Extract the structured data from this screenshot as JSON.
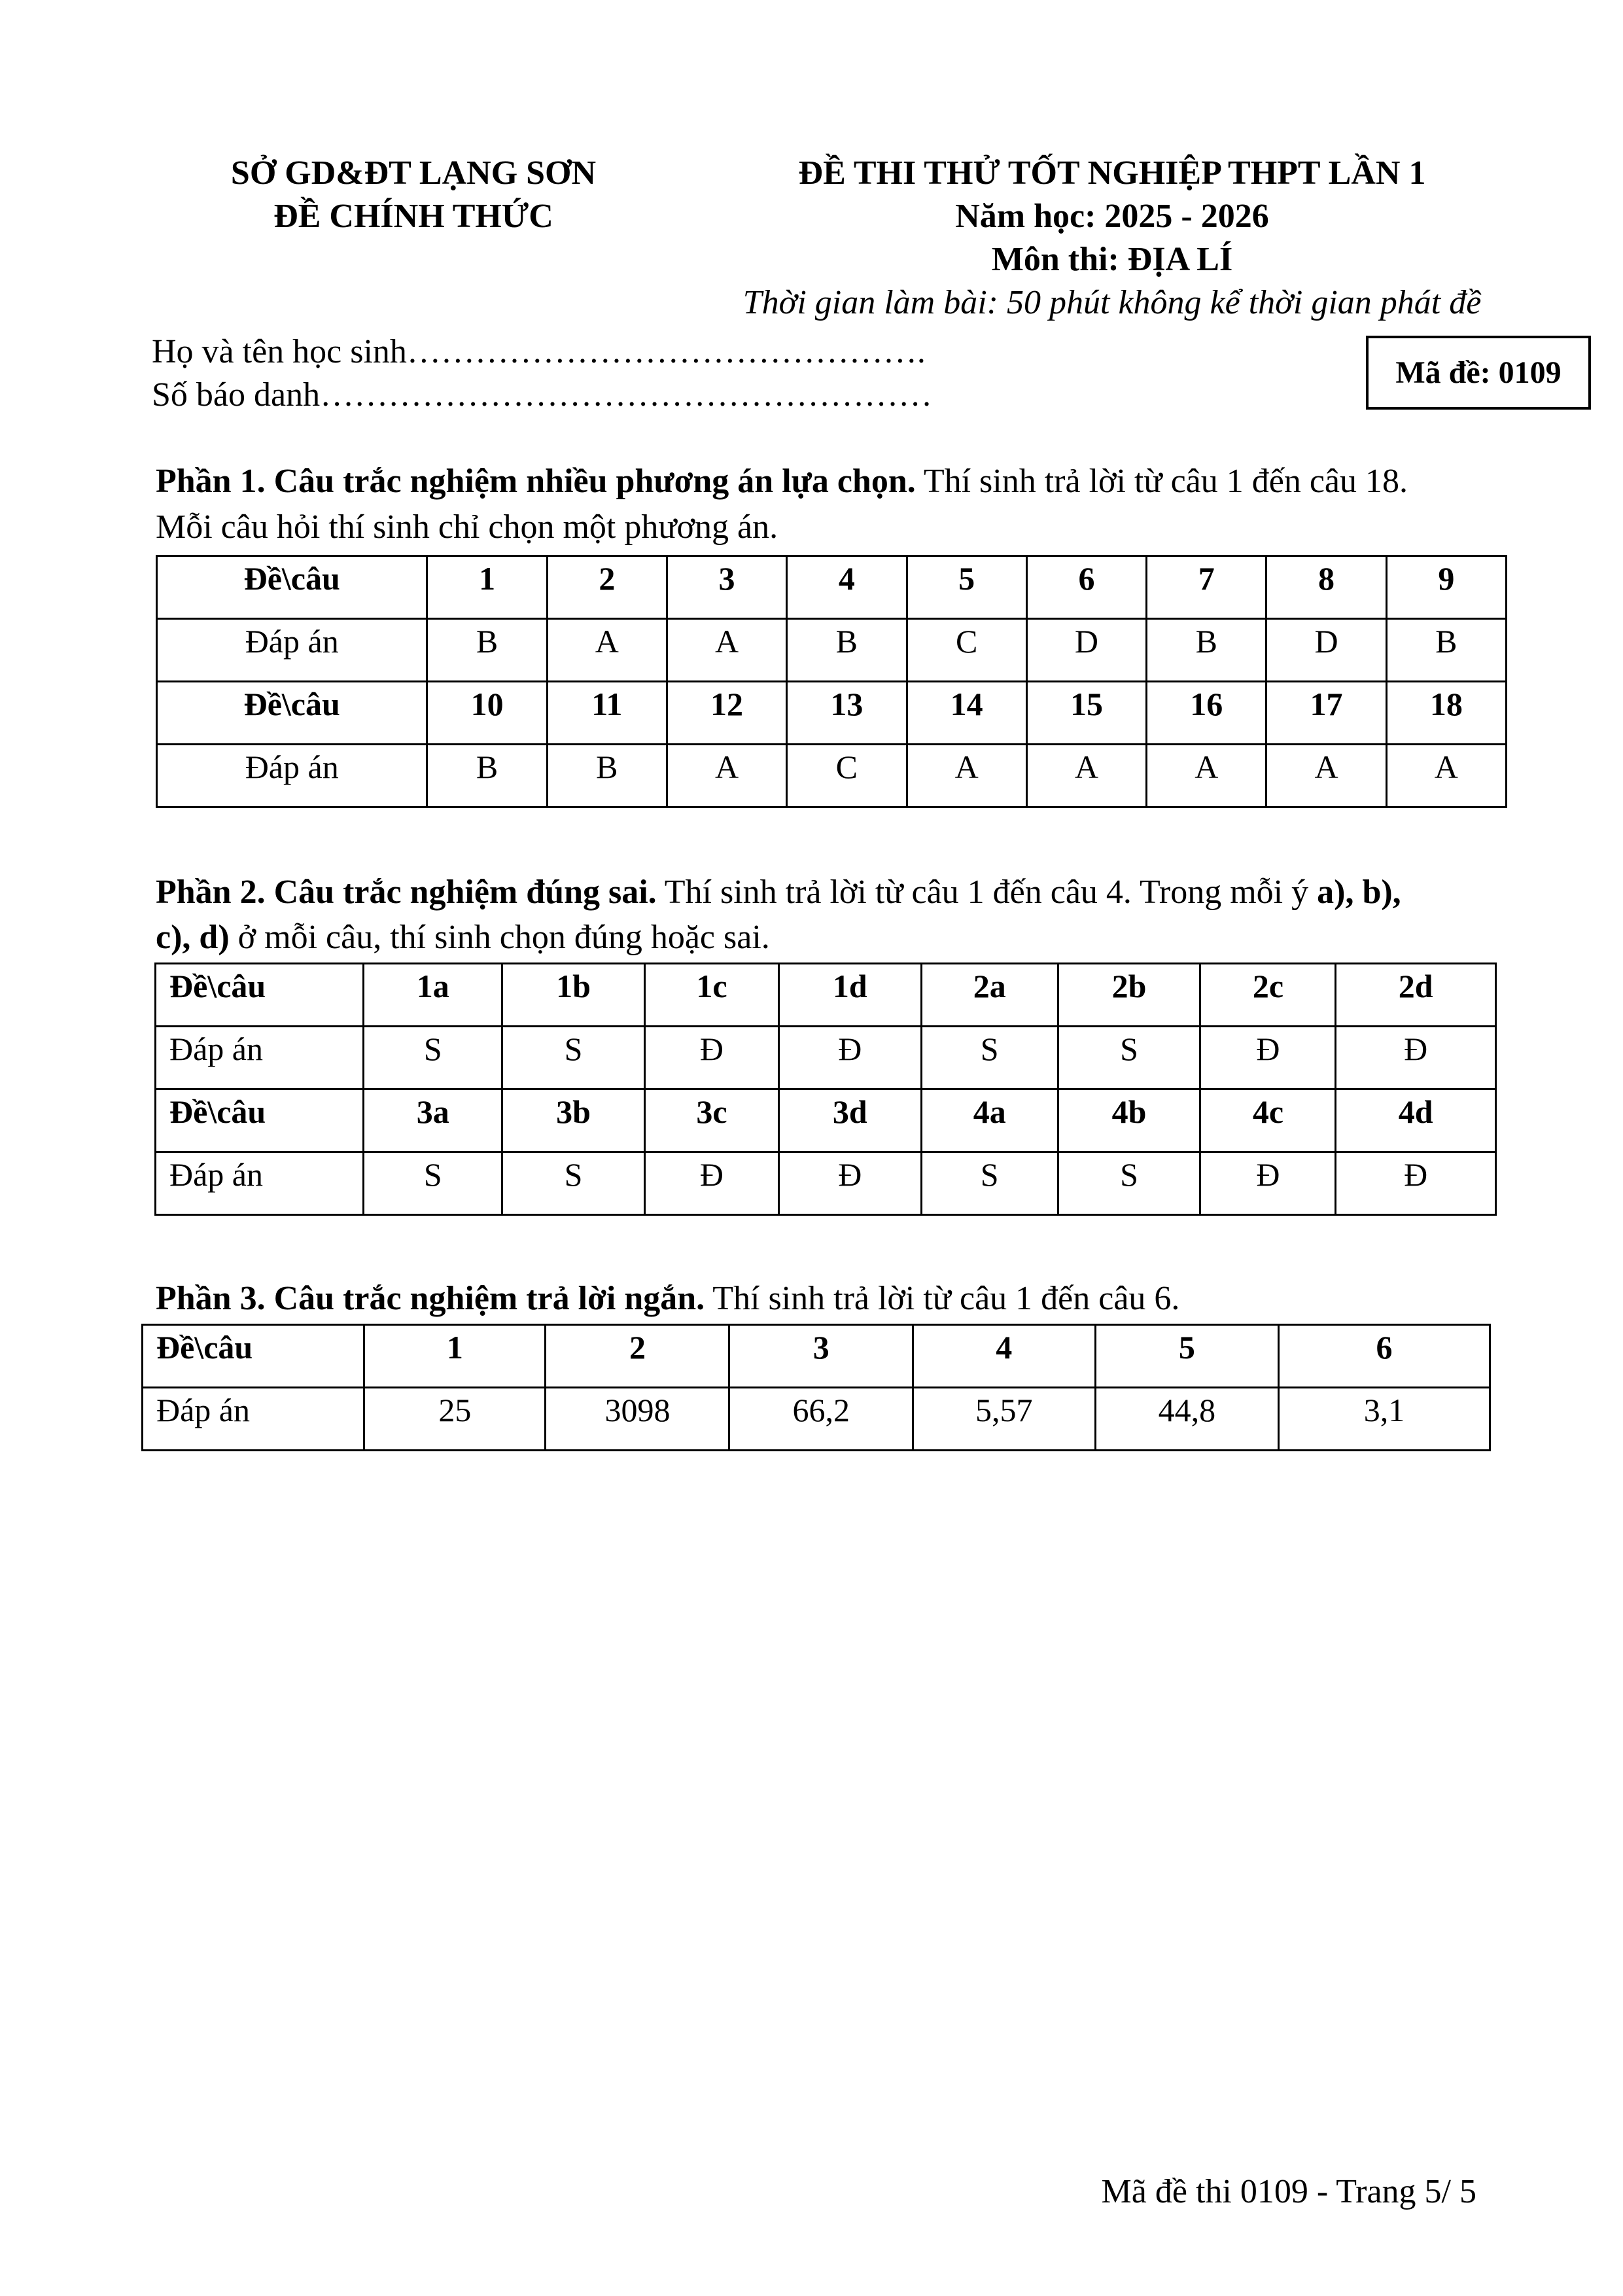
{
  "header": {
    "left": [
      "SỞ GD&ĐT LẠNG SƠN",
      "ĐỀ CHÍNH THỨC"
    ],
    "right": [
      "ĐỀ THI THỬ TỐT NGHIỆP THPT LẦN 1",
      "Năm học: 2025 - 2026",
      "Môn thi: ĐỊA LÍ"
    ],
    "time_note": "Thời gian làm bài: 50 phút không kể thời gian phát đề",
    "student_name": "Họ và tên học sinh……………………………………….",
    "student_id": "Số báo danh………………………………………………",
    "exam_code": "Mã đề: 0109"
  },
  "part1": {
    "title": "Phần 1. Câu trắc nghiệm nhiều phương án lựa chọn.",
    "desc": " Thí sinh trả lời từ câu 1 đến câu 18.",
    "desc2": "Mỗi câu hỏi thí sinh chỉ chọn một phương án.",
    "rows": [
      [
        "Đề\\câu",
        "1",
        "2",
        "3",
        "4",
        "5",
        "6",
        "7",
        "8",
        "9"
      ],
      [
        "Đáp án",
        "B",
        "A",
        "A",
        "B",
        "C",
        "D",
        "B",
        "D",
        "B"
      ],
      [
        "Đề\\câu",
        "10",
        "11",
        "12",
        "13",
        "14",
        "15",
        "16",
        "17",
        "18"
      ],
      [
        "Đáp án",
        "B",
        "B",
        "A",
        "C",
        "A",
        "A",
        "A",
        "A",
        "A"
      ]
    ]
  },
  "part2": {
    "title": "Phần 2. Câu trắc nghiệm đúng sai.",
    "desc": " Thí sinh trả lời từ câu 1 đến câu 4. Trong mỗi ý ",
    "desc_bold": "a), b),",
    "desc2_bold": "c), d)",
    "desc2": " ở mỗi câu, thí sinh chọn đúng hoặc sai.",
    "rows": [
      [
        "Đề\\câu",
        "1a",
        "1b",
        "1c",
        "1d",
        "2a",
        "2b",
        "2c",
        "2d"
      ],
      [
        "Đáp án",
        "S",
        "S",
        "Đ",
        "Đ",
        "S",
        "S",
        "Đ",
        "Đ"
      ],
      [
        "Đề\\câu",
        "3a",
        "3b",
        "3c",
        "3d",
        "4a",
        "4b",
        "4c",
        "4d"
      ],
      [
        "Đáp án",
        "S",
        "S",
        "Đ",
        "Đ",
        "S",
        "S",
        "Đ",
        "Đ"
      ]
    ]
  },
  "part3": {
    "title": "Phần 3. Câu trắc nghiệm trả lời ngắn.",
    "desc": " Thí sinh trả lời từ câu 1 đến câu 6.",
    "rows": [
      [
        "Đề\\câu",
        "1",
        "2",
        "3",
        "4",
        "5",
        "6"
      ],
      [
        "Đáp án",
        "25",
        "3098",
        "66,2",
        "5,57",
        "44,8",
        "3,1"
      ]
    ]
  },
  "footer": "Mã đề thi 0109 - Trang 5/ 5"
}
